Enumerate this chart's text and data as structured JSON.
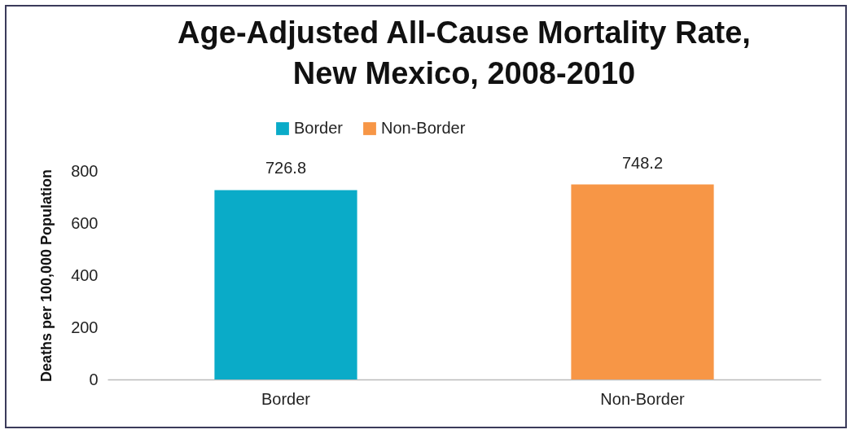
{
  "chart_data": {
    "type": "bar",
    "title": "Age-Adjusted All-Cause Mortality Rate, New Mexico, 2008-2010",
    "ylabel": "Deaths per 100,000 Population",
    "categories": [
      "Border",
      "Non-Border"
    ],
    "series": [
      {
        "name": "Border",
        "color": "#0aabc8",
        "values": [
          726.8,
          null
        ]
      },
      {
        "name": "Non-Border",
        "color": "#f79646",
        "values": [
          null,
          748.2
        ]
      }
    ],
    "ylim": [
      0,
      800
    ],
    "yticks": [
      0,
      200,
      400,
      600,
      800
    ],
    "grid": false,
    "legend": "top",
    "data_labels": true
  }
}
